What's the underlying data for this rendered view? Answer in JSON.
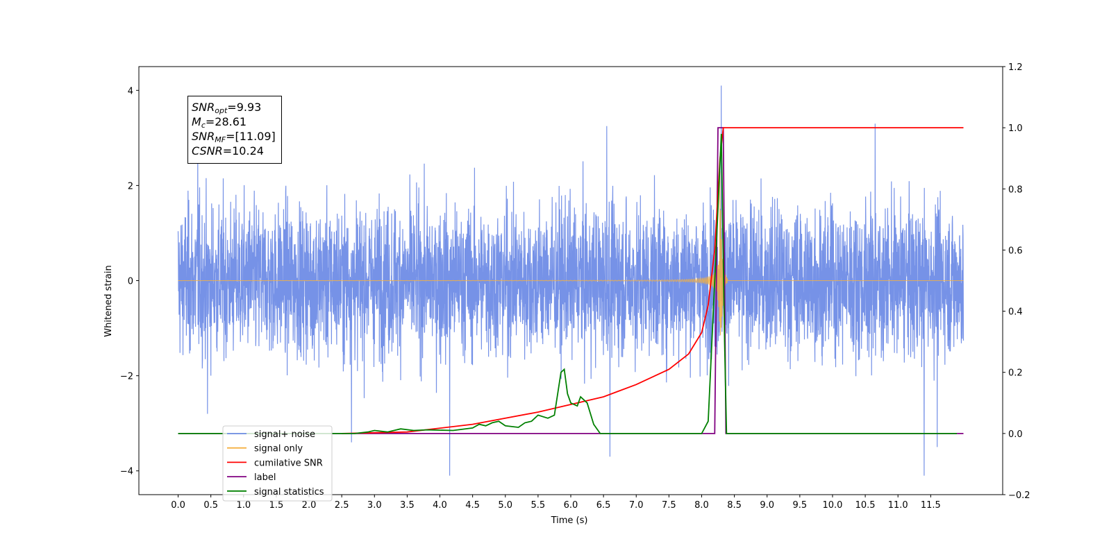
{
  "chart_data": {
    "type": "line",
    "xlabel": "Time (s)",
    "ylabel": "Whitened strain",
    "xlim": [
      -0.6,
      12.6
    ],
    "ylim": [
      -4.5,
      4.5
    ],
    "y2lim": [
      -0.2,
      1.2
    ],
    "x_ticks": [
      "0.0",
      "0.5",
      "1.0",
      "1.5",
      "2.0",
      "2.5",
      "3.0",
      "3.5",
      "4.0",
      "4.5",
      "5.0",
      "5.5",
      "6.0",
      "6.5",
      "7.0",
      "7.5",
      "8.0",
      "8.5",
      "9.0",
      "9.5",
      "10.0",
      "10.5",
      "11.0",
      "11.5"
    ],
    "y_ticks": [
      "4",
      "2",
      "0",
      "−2",
      "−4"
    ],
    "y2_ticks": [
      "1.2",
      "1.0",
      "0.8",
      "0.6",
      "0.4",
      "0.2",
      "0.0",
      "−0.2"
    ],
    "annotation": {
      "snr_opt": {
        "sym": "SNR",
        "sub": "opt",
        "value": "=9.93"
      },
      "mc": {
        "sym": "M",
        "sub": "c",
        "value": "=28.61"
      },
      "snr_mf": {
        "sym": "SNR",
        "sub": "MF",
        "value": "=[11.09]"
      },
      "csnr": {
        "sym": "CSNR",
        "sub": "",
        "value": "=10.24"
      }
    },
    "series": [
      {
        "name": "signal+ noise",
        "color": "#6f8ce6",
        "axis": "left",
        "x_range": [
          0.0,
          12.0
        ],
        "amplitude_typical": 1.5,
        "amplitude_max": 4.1,
        "spikes": [
          [
            0.3,
            2.8
          ],
          [
            0.45,
            -2.8
          ],
          [
            4.15,
            -4.1
          ],
          [
            6.55,
            3.25
          ],
          [
            6.6,
            -3.7
          ],
          [
            8.3,
            4.1
          ],
          [
            10.65,
            3.3
          ],
          [
            11.4,
            -4.1
          ],
          [
            11.6,
            -3.5
          ],
          [
            2.65,
            -3.4
          ]
        ]
      },
      {
        "name": "signal only",
        "color": "#f5b041",
        "axis": "left",
        "chirp": {
          "start": 0.0,
          "merger": 8.28,
          "ringdown_end": 8.4,
          "peak": 2.3
        }
      },
      {
        "name": "cumilative SNR",
        "color": "#ff0000",
        "axis": "right",
        "points": [
          [
            2.5,
            0.0
          ],
          [
            3.5,
            0.005
          ],
          [
            4.5,
            0.03
          ],
          [
            5.5,
            0.07
          ],
          [
            6.5,
            0.12
          ],
          [
            7.0,
            0.16
          ],
          [
            7.5,
            0.21
          ],
          [
            7.8,
            0.26
          ],
          [
            8.0,
            0.33
          ],
          [
            8.1,
            0.42
          ],
          [
            8.2,
            0.6
          ],
          [
            8.28,
            0.9
          ],
          [
            8.33,
            1.0
          ],
          [
            12.0,
            1.0
          ]
        ]
      },
      {
        "name": "label",
        "color": "#800080",
        "axis": "right",
        "points": [
          [
            0.0,
            0.0
          ],
          [
            8.2,
            0.0
          ],
          [
            8.25,
            1.0
          ],
          [
            8.33,
            1.0
          ],
          [
            8.37,
            0.0
          ],
          [
            12.0,
            0.0
          ]
        ]
      },
      {
        "name": "signal statistics",
        "color": "#008000",
        "axis": "right",
        "points": [
          [
            0.0,
            0.0
          ],
          [
            2.7,
            0.0
          ],
          [
            2.9,
            0.005
          ],
          [
            3.0,
            0.01
          ],
          [
            3.2,
            0.005
          ],
          [
            3.4,
            0.015
          ],
          [
            3.6,
            0.01
          ],
          [
            3.8,
            0.012
          ],
          [
            4.2,
            0.01
          ],
          [
            4.5,
            0.018
          ],
          [
            4.6,
            0.03
          ],
          [
            4.7,
            0.025
          ],
          [
            4.8,
            0.035
          ],
          [
            4.9,
            0.04
          ],
          [
            5.0,
            0.025
          ],
          [
            5.2,
            0.02
          ],
          [
            5.3,
            0.035
          ],
          [
            5.4,
            0.04
          ],
          [
            5.5,
            0.06
          ],
          [
            5.65,
            0.05
          ],
          [
            5.75,
            0.06
          ],
          [
            5.85,
            0.2
          ],
          [
            5.9,
            0.21
          ],
          [
            5.95,
            0.13
          ],
          [
            6.0,
            0.1
          ],
          [
            6.1,
            0.09
          ],
          [
            6.15,
            0.12
          ],
          [
            6.25,
            0.1
          ],
          [
            6.35,
            0.03
          ],
          [
            6.45,
            0.0
          ],
          [
            7.8,
            0.0
          ],
          [
            8.0,
            0.0
          ],
          [
            8.1,
            0.04
          ],
          [
            8.2,
            0.5
          ],
          [
            8.3,
            0.98
          ],
          [
            8.35,
            0.3
          ],
          [
            8.38,
            0.0
          ],
          [
            11.9,
            0.0
          ]
        ]
      }
    ],
    "legend": {
      "position": "lower-left",
      "entries": [
        "signal+ noise",
        "signal only",
        "cumilative SNR",
        "label",
        "signal statistics"
      ]
    }
  }
}
